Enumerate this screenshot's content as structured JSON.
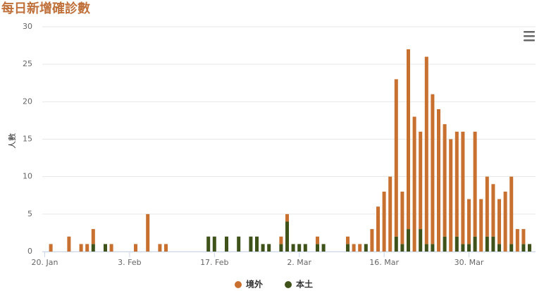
{
  "chart_data": {
    "type": "stacked-bar",
    "title": "每日新增確診數",
    "y_label": "人數",
    "categories": [
      "20. Jan",
      null,
      null,
      null,
      null,
      null,
      null,
      null,
      null,
      null,
      null,
      null,
      null,
      null,
      "3. Feb",
      null,
      null,
      null,
      null,
      null,
      null,
      null,
      null,
      null,
      null,
      null,
      null,
      null,
      "17. Feb",
      null,
      null,
      null,
      null,
      null,
      null,
      null,
      null,
      null,
      null,
      null,
      null,
      null,
      "2. Mar",
      null,
      null,
      null,
      null,
      null,
      null,
      null,
      null,
      null,
      null,
      null,
      null,
      null,
      "16. Mar",
      null,
      null,
      null,
      null,
      null,
      null,
      null,
      null,
      null,
      null,
      null,
      null,
      null,
      "30. Mar",
      null,
      null,
      null,
      null,
      null,
      null,
      null,
      null,
      null,
      null
    ],
    "series": [
      {
        "name": "境外",
        "color": "#c8702f",
        "values": [
          0,
          1,
          0,
          0,
          2,
          0,
          1,
          1,
          2,
          0,
          0,
          1,
          0,
          0,
          0,
          1,
          0,
          5,
          0,
          1,
          1,
          0,
          0,
          0,
          0,
          0,
          0,
          0,
          0,
          0,
          0,
          0,
          0,
          0,
          0,
          0,
          0,
          0,
          0,
          1,
          1,
          0,
          0,
          0,
          0,
          1,
          0,
          0,
          0,
          0,
          1,
          1,
          1,
          0,
          3,
          6,
          8,
          10,
          21,
          7,
          24,
          18,
          13,
          25,
          20,
          19,
          15,
          15,
          14,
          15,
          6,
          14,
          7,
          8,
          7,
          6,
          8,
          9,
          3,
          2,
          0
        ]
      },
      {
        "name": "本土",
        "color": "#3f5219",
        "values": [
          0,
          0,
          0,
          0,
          0,
          0,
          0,
          0,
          1,
          0,
          1,
          0,
          0,
          0,
          0,
          0,
          0,
          0,
          0,
          0,
          0,
          0,
          0,
          0,
          0,
          0,
          0,
          2,
          2,
          0,
          2,
          0,
          2,
          0,
          2,
          2,
          1,
          1,
          0,
          1,
          4,
          1,
          1,
          1,
          0,
          1,
          1,
          0,
          0,
          0,
          1,
          0,
          0,
          1,
          0,
          0,
          0,
          0,
          2,
          1,
          3,
          0,
          3,
          1,
          1,
          0,
          2,
          0,
          2,
          1,
          1,
          2,
          0,
          2,
          2,
          1,
          0,
          1,
          0,
          1,
          1
        ]
      }
    ],
    "ylim": [
      0,
      30
    ],
    "yticks": [
      0,
      5,
      10,
      15,
      20,
      25,
      30
    ],
    "grid": true,
    "legend": "bottom"
  }
}
